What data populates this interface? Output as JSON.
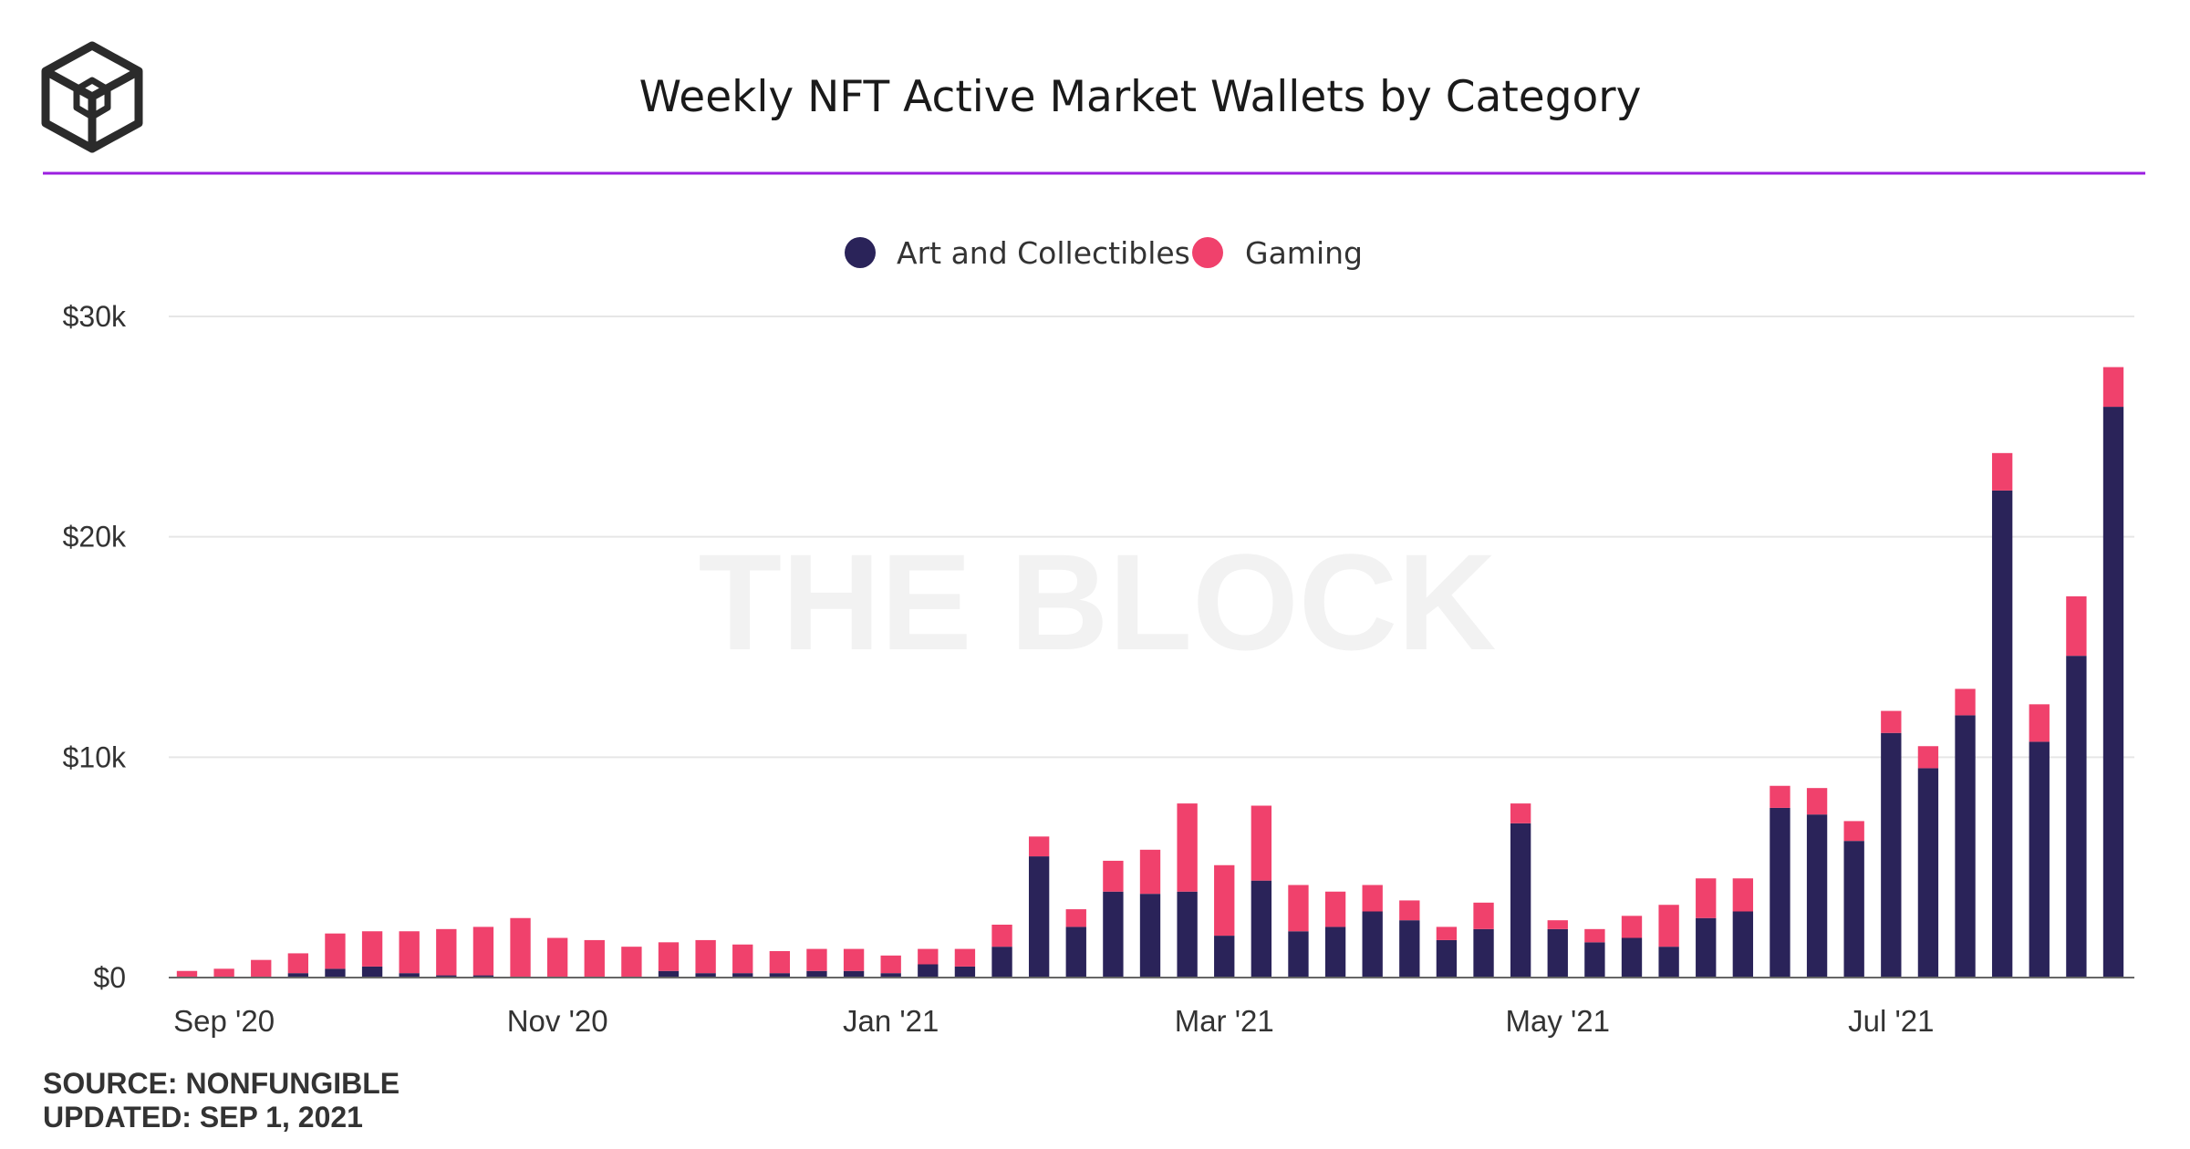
{
  "header": {
    "title": "Weekly NFT Active Market Wallets by Category",
    "logo_icon": "the-block-cube-logo",
    "accent_color": "#9b1fe0"
  },
  "watermark": "THE BLOCK",
  "footer": {
    "source": "SOURCE: NONFUNGIBLE",
    "updated": "UPDATED: SEP 1, 2021"
  },
  "chart_data": {
    "type": "bar",
    "stacked": true,
    "title": "Weekly NFT Active Market Wallets by Category",
    "xlabel": "",
    "ylabel": "",
    "ylim": [
      0,
      30000
    ],
    "yticks": [
      {
        "value": 0,
        "label": "$0"
      },
      {
        "value": 10000,
        "label": "$10k"
      },
      {
        "value": 20000,
        "label": "$20k"
      },
      {
        "value": 30000,
        "label": "$30k"
      }
    ],
    "xticks": [
      {
        "index": 1,
        "label": "Sep '20"
      },
      {
        "index": 10,
        "label": "Nov '20"
      },
      {
        "index": 19,
        "label": "Jan '21"
      },
      {
        "index": 28,
        "label": "Mar '21"
      },
      {
        "index": 37,
        "label": "May '21"
      },
      {
        "index": 46,
        "label": "Jul '21"
      }
    ],
    "grid": true,
    "legend_position": "top-center",
    "series": [
      {
        "name": "Art and Collectibles",
        "color": "#2a2359",
        "values": [
          0,
          0,
          0,
          200,
          400,
          500,
          200,
          100,
          100,
          0,
          0,
          0,
          0,
          300,
          200,
          200,
          200,
          300,
          300,
          200,
          600,
          500,
          1400,
          5500,
          2300,
          3900,
          3800,
          3900,
          1900,
          4400,
          2100,
          2300,
          3000,
          2600,
          1700,
          2200,
          7000,
          2200,
          1600,
          1800,
          1400,
          2700,
          3000,
          7700,
          7400,
          6200,
          11100,
          9500,
          11900,
          22100,
          10700,
          14600,
          25900
        ]
      },
      {
        "name": "Gaming",
        "color": "#f0416c",
        "values": [
          300,
          400,
          800,
          900,
          1600,
          1600,
          1900,
          2100,
          2200,
          2700,
          1800,
          1700,
          1400,
          1300,
          1500,
          1300,
          1000,
          1000,
          1000,
          800,
          700,
          800,
          1000,
          900,
          800,
          1400,
          2000,
          4000,
          3200,
          3400,
          2100,
          1600,
          1200,
          900,
          600,
          1200,
          900,
          400,
          600,
          1000,
          1900,
          1800,
          1500,
          1000,
          1200,
          900,
          1000,
          1000,
          1200,
          1700,
          1700,
          2700,
          1800
        ]
      }
    ]
  }
}
